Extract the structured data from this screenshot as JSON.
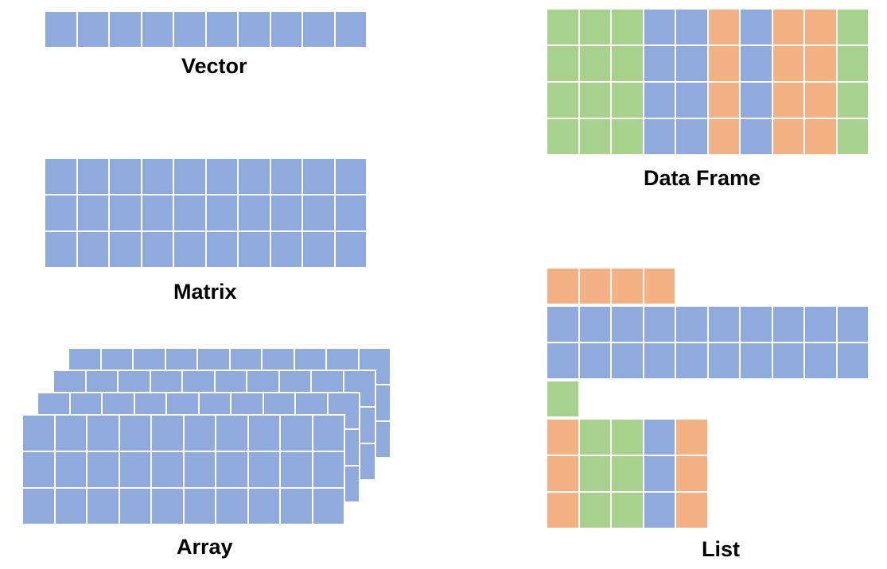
{
  "colors": {
    "blue": "#8faadc",
    "green": "#a9d18e",
    "orange": "#f4b183",
    "gap": "#ffffff"
  },
  "labels": {
    "vector": "Vector",
    "matrix": "Matrix",
    "array": "Array",
    "data_frame": "Data Frame",
    "list": "List"
  },
  "vector": {
    "rows": 1,
    "cols": 10,
    "fill": "blue"
  },
  "matrix": {
    "rows": 3,
    "cols": 10,
    "fill": "blue"
  },
  "array": {
    "layers": 4,
    "rows": 3,
    "cols": 10,
    "fill": "blue"
  },
  "data_frame": {
    "rows": 4,
    "column_colors": [
      "green",
      "green",
      "green",
      "blue",
      "blue",
      "orange",
      "blue",
      "orange",
      "orange",
      "green"
    ]
  },
  "list": {
    "elements": [
      {
        "rows": 1,
        "column_colors": [
          "orange",
          "orange",
          "orange",
          "orange"
        ]
      },
      {
        "rows": 2,
        "column_colors": [
          "blue",
          "blue",
          "blue",
          "blue",
          "blue",
          "blue",
          "blue",
          "blue",
          "blue",
          "blue"
        ]
      },
      {
        "rows": 1,
        "column_colors": [
          "green"
        ]
      },
      {
        "rows": 3,
        "column_colors": [
          "orange",
          "green",
          "green",
          "blue",
          "orange"
        ]
      }
    ]
  }
}
